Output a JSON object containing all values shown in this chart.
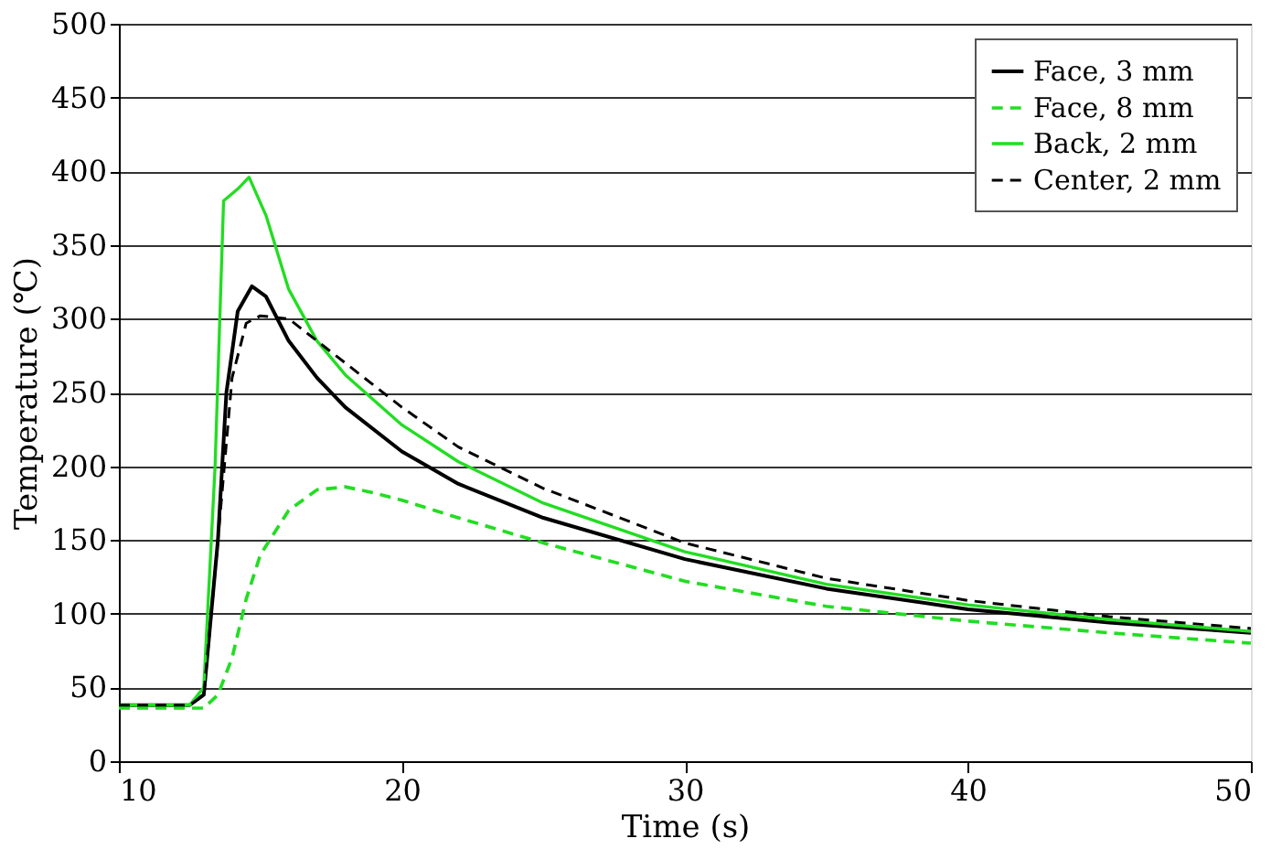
{
  "chart_data": {
    "type": "line",
    "xlabel": "Time (s)",
    "ylabel": "Temperature (℃)",
    "xlim": [
      10,
      50
    ],
    "xticks": [
      10,
      20,
      30,
      40,
      50
    ],
    "ylim": [
      0,
      500
    ],
    "yticks": [
      0,
      50,
      100,
      150,
      200,
      250,
      300,
      350,
      400,
      450,
      500
    ],
    "grid": "y",
    "legend": "top right",
    "marker": "none",
    "series": [
      {
        "name": "Face, 3 mm",
        "color": "#000000",
        "line_style": "solid",
        "x": [
          10,
          12.5,
          13,
          13.5,
          13.8,
          14.2,
          14.7,
          15.2,
          16,
          17,
          18,
          20,
          22,
          25,
          30,
          35,
          40,
          45,
          50
        ],
        "values": [
          38,
          38,
          45,
          150,
          250,
          305,
          322,
          315,
          285,
          260,
          240,
          210,
          188,
          165,
          137,
          117,
          103,
          94,
          87
        ]
      },
      {
        "name": "Face, 8 mm",
        "color": "#22dd22",
        "line_style": "dashed",
        "x": [
          10,
          13,
          13.5,
          14,
          14.5,
          15,
          16,
          17,
          18,
          19,
          20,
          22,
          25,
          30,
          35,
          40,
          45,
          50
        ],
        "values": [
          36,
          36,
          45,
          70,
          110,
          140,
          170,
          184,
          186,
          182,
          177,
          165,
          148,
          122,
          105,
          95,
          87,
          80
        ]
      },
      {
        "name": "Back, 2 mm",
        "color": "#22dd22",
        "line_style": "solid",
        "x": [
          10,
          12.5,
          13,
          13.4,
          13.7,
          14.2,
          14.6,
          15.2,
          16,
          17,
          18,
          20,
          22,
          25,
          30,
          35,
          40,
          45,
          50
        ],
        "values": [
          38,
          38,
          50,
          200,
          380,
          388,
          396,
          370,
          320,
          285,
          262,
          228,
          203,
          175,
          142,
          120,
          106,
          96,
          88
        ]
      },
      {
        "name": "Center, 2 mm",
        "color": "#000000",
        "line_style": "dashed",
        "x": [
          10,
          12.5,
          13,
          13.5,
          14,
          14.5,
          15,
          16,
          17,
          18,
          20,
          22,
          25,
          30,
          35,
          40,
          45,
          50
        ],
        "values": [
          38,
          38,
          45,
          150,
          260,
          297,
          302,
          300,
          285,
          270,
          240,
          213,
          185,
          148,
          124,
          109,
          98,
          90
        ]
      }
    ]
  }
}
